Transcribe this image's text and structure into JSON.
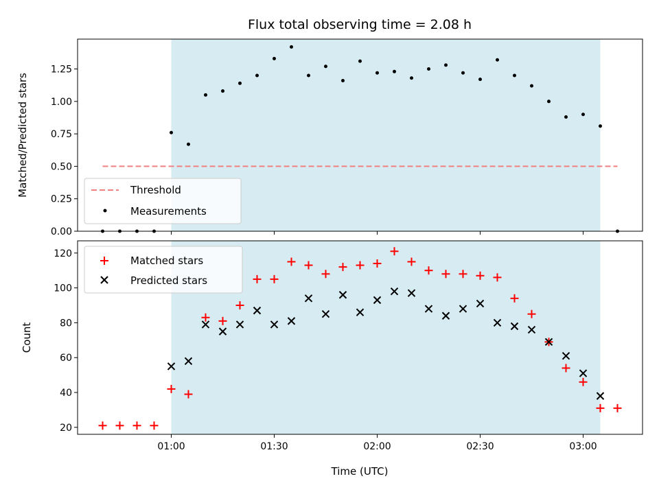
{
  "chart_data": [
    {
      "type": "scatter",
      "title": "Flux total observing time = 2.08 h",
      "xlabel": "",
      "ylabel": "Matched/Predicted stars",
      "ylim": [
        0,
        1.48
      ],
      "yticks": [
        "0.00",
        "0.25",
        "0.50",
        "0.75",
        "1.00",
        "1.25"
      ],
      "shaded_range": [
        "01:00",
        "03:05"
      ],
      "threshold": {
        "name": "Threshold",
        "value": 0.5,
        "x_start": "00:40",
        "x_end": "03:10",
        "color": "#f08080"
      },
      "series": [
        {
          "name": "Measurements",
          "marker": "dot",
          "color": "#000000",
          "x": [
            "00:40",
            "00:45",
            "00:50",
            "00:55",
            "01:00",
            "01:05",
            "01:10",
            "01:15",
            "01:20",
            "01:25",
            "01:30",
            "01:35",
            "01:40",
            "01:45",
            "01:50",
            "01:55",
            "02:00",
            "02:05",
            "02:10",
            "02:15",
            "02:20",
            "02:25",
            "02:30",
            "02:35",
            "02:40",
            "02:45",
            "02:50",
            "02:55",
            "03:00",
            "03:05",
            "03:10"
          ],
          "y": [
            0.0,
            0.0,
            0.0,
            0.0,
            0.76,
            0.67,
            1.05,
            1.08,
            1.14,
            1.2,
            1.33,
            1.42,
            1.2,
            1.27,
            1.16,
            1.31,
            1.22,
            1.23,
            1.18,
            1.25,
            1.28,
            1.22,
            1.17,
            1.32,
            1.2,
            1.12,
            1.0,
            0.88,
            0.9,
            0.81,
            0.0
          ]
        }
      ],
      "legend": {
        "placement": "lower-left",
        "entries": [
          "Threshold",
          "Measurements"
        ]
      }
    },
    {
      "type": "scatter",
      "title": "",
      "xlabel": "Time (UTC)",
      "ylabel": "Count",
      "ylim": [
        16,
        127
      ],
      "yticks": [
        "20",
        "40",
        "60",
        "80",
        "100",
        "120"
      ],
      "xticks": [
        "01:00",
        "01:30",
        "02:00",
        "02:30",
        "03:00"
      ],
      "shaded_range": [
        "01:00",
        "03:05"
      ],
      "series": [
        {
          "name": "Matched stars",
          "marker": "plus",
          "color": "#ff0000",
          "x": [
            "00:40",
            "00:45",
            "00:50",
            "00:55",
            "01:00",
            "01:05",
            "01:10",
            "01:15",
            "01:20",
            "01:25",
            "01:30",
            "01:35",
            "01:40",
            "01:45",
            "01:50",
            "01:55",
            "02:00",
            "02:05",
            "02:10",
            "02:15",
            "02:20",
            "02:25",
            "02:30",
            "02:35",
            "02:40",
            "02:45",
            "02:50",
            "02:55",
            "03:00",
            "03:05",
            "03:10"
          ],
          "y": [
            21,
            21,
            21,
            21,
            42,
            39,
            83,
            81,
            90,
            105,
            105,
            115,
            113,
            108,
            112,
            113,
            114,
            121,
            115,
            110,
            108,
            108,
            107,
            106,
            94,
            85,
            69,
            54,
            46,
            31,
            31
          ]
        },
        {
          "name": "Predicted stars",
          "marker": "x",
          "color": "#000000",
          "x": [
            "01:00",
            "01:05",
            "01:10",
            "01:15",
            "01:20",
            "01:25",
            "01:30",
            "01:35",
            "01:40",
            "01:45",
            "01:50",
            "01:55",
            "02:00",
            "02:05",
            "02:10",
            "02:15",
            "02:20",
            "02:25",
            "02:30",
            "02:35",
            "02:40",
            "02:45",
            "02:50",
            "02:55",
            "03:00",
            "03:05"
          ],
          "y": [
            55,
            58,
            79,
            75,
            79,
            87,
            79,
            81,
            94,
            85,
            96,
            86,
            93,
            98,
            97,
            88,
            84,
            88,
            91,
            80,
            78,
            76,
            69,
            61,
            51,
            38
          ]
        }
      ],
      "legend": {
        "placement": "upper-left",
        "entries": [
          "Matched stars",
          "Predicted stars"
        ]
      }
    }
  ],
  "colors": {
    "shade": "#add8e6",
    "threshold": "#f08080",
    "matched": "#ff0000",
    "predicted": "#000000"
  }
}
